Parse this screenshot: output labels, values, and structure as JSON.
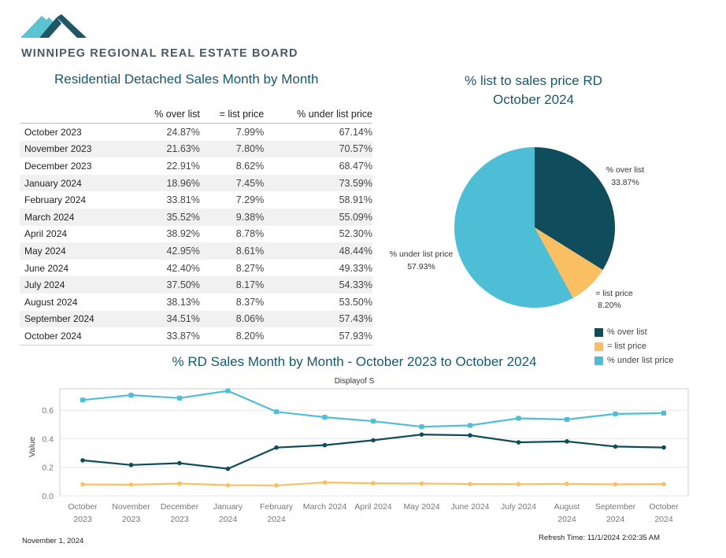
{
  "header": {
    "org_name": "WINNIPEG REGIONAL REAL ESTATE BOARD"
  },
  "colors": {
    "over_list": "#0f4c5c",
    "list_price": "#fbbf63",
    "under_list": "#4ebed6",
    "logo_light": "#5cc3d1",
    "logo_dark": "#1f5766"
  },
  "table": {
    "title": "Residential Detached Sales Month by Month",
    "headers": [
      "",
      "% over list",
      "= list price",
      "% under list price"
    ],
    "rows": [
      {
        "month": "October 2023",
        "over": "24.87%",
        "list": "7.99%",
        "under": "67.14%"
      },
      {
        "month": "November 2023",
        "over": "21.63%",
        "list": "7.80%",
        "under": "70.57%"
      },
      {
        "month": "December 2023",
        "over": "22.91%",
        "list": "8.62%",
        "under": "68.47%"
      },
      {
        "month": "January 2024",
        "over": "18.96%",
        "list": "7.45%",
        "under": "73.59%"
      },
      {
        "month": "February 2024",
        "over": "33.81%",
        "list": "7.29%",
        "under": "58.91%"
      },
      {
        "month": "March 2024",
        "over": "35.52%",
        "list": "9.38%",
        "under": "55.09%"
      },
      {
        "month": "April 2024",
        "over": "38.92%",
        "list": "8.78%",
        "under": "52.30%"
      },
      {
        "month": "May 2024",
        "over": "42.95%",
        "list": "8.61%",
        "under": "48.44%"
      },
      {
        "month": "June 2024",
        "over": "42.40%",
        "list": "8.27%",
        "under": "49.33%"
      },
      {
        "month": "July 2024",
        "over": "37.50%",
        "list": "8.17%",
        "under": "54.33%"
      },
      {
        "month": "August 2024",
        "over": "38.13%",
        "list": "8.37%",
        "under": "53.50%"
      },
      {
        "month": "September 2024",
        "over": "34.51%",
        "list": "8.06%",
        "under": "57.43%"
      },
      {
        "month": "October 2024",
        "over": "33.87%",
        "list": "8.20%",
        "under": "57.93%"
      }
    ]
  },
  "chart_data": [
    {
      "type": "pie",
      "title_line1": "% list to sales price RD",
      "title_line2": "October 2024",
      "slices": [
        {
          "label": "% over list",
          "value": 33.87,
          "value_label": "33.87%"
        },
        {
          "label": "= list price",
          "value": 8.2,
          "value_label": "8.20%"
        },
        {
          "label": "% under list price",
          "value": 57.93,
          "value_label": "57.93%"
        }
      ],
      "legend": [
        "% over list",
        "= list price",
        "% under list price"
      ],
      "legend_position": "bottom-right"
    },
    {
      "type": "line",
      "title": "% RD Sales Month by Month - October 2023 to October 2024",
      "subtitle": "Displayof S",
      "ylabel": "Value",
      "ylim": [
        0,
        0.75
      ],
      "yticks": [
        "0.0",
        "0.2",
        "0.4",
        "0.6"
      ],
      "categories": [
        [
          "October",
          "2023"
        ],
        [
          "November",
          "2023"
        ],
        [
          "December",
          "2023"
        ],
        [
          "January",
          "2024"
        ],
        [
          "February",
          "2024"
        ],
        [
          "March 2024",
          ""
        ],
        [
          "April 2024",
          ""
        ],
        [
          "May 2024",
          ""
        ],
        [
          "June 2024",
          ""
        ],
        [
          "July 2024",
          ""
        ],
        [
          "August",
          "2024"
        ],
        [
          "September",
          "2024"
        ],
        [
          "October",
          "2024"
        ]
      ],
      "series": [
        {
          "key": "under",
          "values": [
            0.6714,
            0.7057,
            0.6847,
            0.7359,
            0.5891,
            0.5509,
            0.523,
            0.4844,
            0.4933,
            0.5433,
            0.535,
            0.5743,
            0.5793
          ],
          "marker": "square"
        },
        {
          "key": "over",
          "values": [
            0.2487,
            0.2163,
            0.2291,
            0.1896,
            0.3381,
            0.3552,
            0.3892,
            0.4295,
            0.424,
            0.375,
            0.3813,
            0.3451,
            0.3387
          ],
          "marker": "circle"
        },
        {
          "key": "list",
          "values": [
            0.0799,
            0.078,
            0.0862,
            0.0745,
            0.0729,
            0.0938,
            0.0878,
            0.0861,
            0.0827,
            0.0817,
            0.0837,
            0.0806,
            0.082
          ],
          "marker": "circle"
        }
      ],
      "grid": true
    }
  ],
  "footer": {
    "date": "November 1, 2024",
    "refresh": "Refresh Time: 11/1/2024 2:02:35 AM"
  }
}
